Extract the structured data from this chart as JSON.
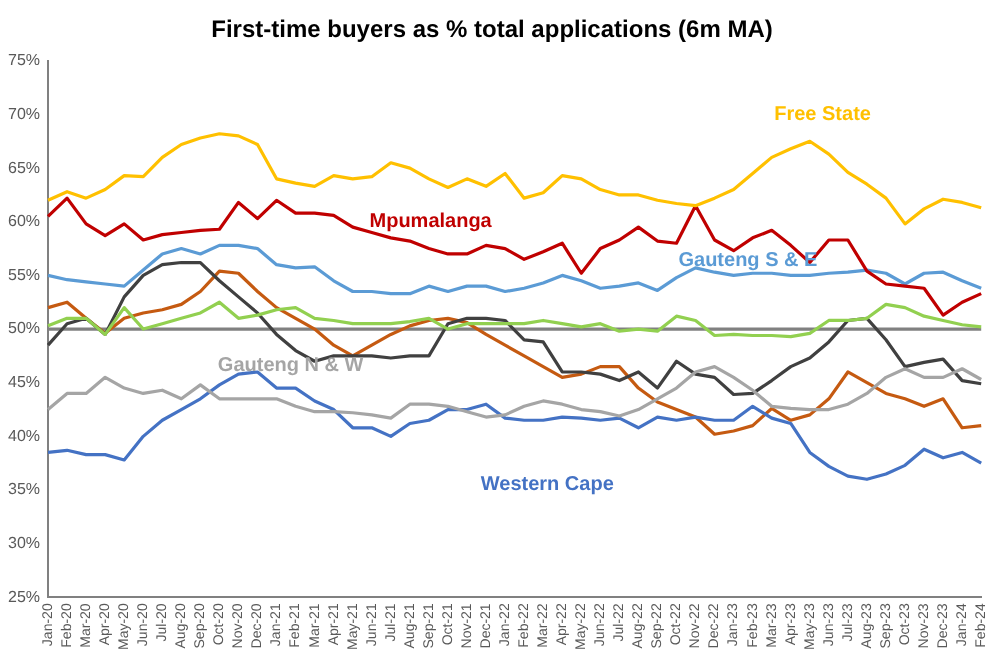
{
  "chart_data": {
    "type": "line",
    "title": "First-time buyers as % total applications (6m MA)",
    "categories": [
      "Jan-20",
      "Feb-20",
      "Mar-20",
      "Apr-20",
      "May-20",
      "Jun-20",
      "Jul-20",
      "Aug-20",
      "Sep-20",
      "Oct-20",
      "Nov-20",
      "Dec-20",
      "Jan-21",
      "Feb-21",
      "Mar-21",
      "Apr-21",
      "May-21",
      "Jun-21",
      "Jul-21",
      "Aug-21",
      "Sep-21",
      "Oct-21",
      "Nov-21",
      "Dec-21",
      "Jan-22",
      "Feb-22",
      "Mar-22",
      "Apr-22",
      "May-22",
      "Jun-22",
      "Jul-22",
      "Aug-22",
      "Sep-22",
      "Oct-22",
      "Nov-22",
      "Dec-22",
      "Jan-23",
      "Feb-23",
      "Mar-23",
      "Apr-23",
      "May-23",
      "Jun-23",
      "Jul-23",
      "Aug-23",
      "Sep-23",
      "Oct-23",
      "Nov-23",
      "Dec-23",
      "Jan-24",
      "Feb-24"
    ],
    "series": [
      {
        "name": "Free State",
        "color": "#ffc000",
        "values": [
          62,
          62.8,
          62.2,
          63,
          64.3,
          64.2,
          66,
          67.2,
          67.8,
          68.2,
          68,
          67.2,
          64,
          63.6,
          63.3,
          64.3,
          64,
          64.2,
          65.5,
          65,
          64,
          63.2,
          64,
          63.3,
          64.5,
          62.2,
          62.7,
          64.3,
          64,
          63,
          62.5,
          62.5,
          62,
          61.7,
          61.5,
          62.2,
          63,
          64.5,
          66,
          66.8,
          67.5,
          66.3,
          64.6,
          63.5,
          62.2,
          59.8,
          61.2,
          62.1,
          61.8,
          61.3
        ]
      },
      {
        "name": "Mpumalanga",
        "color": "#c00000",
        "values": [
          60.5,
          62.2,
          59.8,
          58.7,
          59.8,
          58.3,
          58.8,
          59,
          59.2,
          59.3,
          61.8,
          60.3,
          62,
          60.8,
          60.8,
          60.6,
          59.5,
          59,
          58.5,
          58.2,
          57.5,
          57,
          57,
          57.8,
          57.5,
          56.5,
          57.2,
          58,
          55.2,
          57.5,
          58.3,
          59.5,
          58.2,
          58,
          61.5,
          58.3,
          57.3,
          58.5,
          59.2,
          57.8,
          56.2,
          58.3,
          58.3,
          55.4,
          54.2,
          54,
          53.8,
          51.3,
          52.5,
          53.3
        ]
      },
      {
        "name": "Gauteng S & E",
        "color": "#5b9bd5",
        "values": [
          55,
          54.6,
          54.4,
          54.2,
          54,
          55.5,
          57,
          57.5,
          57,
          57.8,
          57.8,
          57.5,
          56,
          55.7,
          55.8,
          54.5,
          53.5,
          53.5,
          53.3,
          53.3,
          54,
          53.5,
          54,
          54,
          53.5,
          53.8,
          54.3,
          55,
          54.5,
          53.8,
          54,
          54.3,
          53.6,
          54.8,
          55.7,
          55.3,
          55,
          55.2,
          55.2,
          55,
          55,
          55.2,
          55.3,
          55.5,
          55.2,
          54.2,
          55.2,
          55.3,
          54.5,
          53.8
        ]
      },
      {
        "name": "Gauteng N & W",
        "color": "#a5a5a5",
        "values": [
          42.5,
          44,
          44,
          45.5,
          44.5,
          44,
          44.3,
          43.5,
          44.8,
          43.5,
          43.5,
          43.5,
          43.5,
          42.8,
          42.3,
          42.3,
          42.2,
          42,
          41.7,
          43,
          43,
          42.8,
          42.3,
          41.8,
          42,
          42.8,
          43.3,
          43,
          42.5,
          42.3,
          41.9,
          42.5,
          43.5,
          44.5,
          46,
          46.5,
          45.5,
          44.3,
          42.8,
          42.6,
          42.5,
          42.5,
          43,
          44,
          45.5,
          46.3,
          45.5,
          45.5,
          46.3,
          45.3
        ]
      },
      {
        "name": "Western Cape",
        "color": "#4472c4",
        "values": [
          38.5,
          38.7,
          38.3,
          38.3,
          37.8,
          40,
          41.5,
          42.5,
          43.5,
          44.8,
          45.8,
          46,
          44.5,
          44.5,
          43.3,
          42.5,
          40.8,
          40.8,
          40,
          41.2,
          41.5,
          42.5,
          42.5,
          43,
          41.7,
          41.5,
          41.5,
          41.8,
          41.7,
          41.5,
          41.7,
          40.8,
          41.8,
          41.5,
          41.8,
          41.5,
          41.5,
          42.8,
          41.7,
          41.2,
          38.5,
          37.2,
          36.3,
          36,
          36.5,
          37.3,
          38.8,
          38,
          38.5,
          37.5
        ]
      },
      {
        "color": "#92d050",
        "values": [
          50.3,
          51,
          51,
          49.5,
          52,
          50,
          50.5,
          51,
          51.5,
          52.5,
          51,
          51.3,
          51.8,
          52,
          51,
          50.8,
          50.5,
          50.5,
          50.5,
          50.7,
          51,
          50,
          50.5,
          50.5,
          50.5,
          50.5,
          50.8,
          50.5,
          50.2,
          50.5,
          49.8,
          50,
          49.8,
          51.2,
          50.8,
          49.4,
          49.5,
          49.4,
          49.4,
          49.3,
          49.6,
          50.8,
          50.8,
          51,
          52.3,
          52,
          51.2,
          50.8,
          50.4,
          50.2
        ]
      },
      {
        "color": "#404040",
        "values": [
          48.5,
          50.5,
          51,
          49.5,
          53,
          55,
          56,
          56.2,
          56.2,
          54.5,
          53,
          51.5,
          49.5,
          48,
          47,
          47.5,
          47.5,
          47.5,
          47.3,
          47.5,
          47.5,
          50.5,
          51,
          51,
          50.8,
          49,
          48.8,
          46,
          46,
          45.8,
          45.2,
          46,
          44.5,
          47,
          45.8,
          45.5,
          43.9,
          44,
          45.2,
          46.5,
          47.3,
          48.8,
          50.8,
          51,
          49,
          46.5,
          46.9,
          47.2,
          45.2,
          44.9
        ]
      },
      {
        "color": "#c55a11",
        "values": [
          52,
          52.5,
          51,
          49.6,
          51,
          51.5,
          51.8,
          52.3,
          53.5,
          55.4,
          55.2,
          53.5,
          52,
          51,
          50,
          48.5,
          47.5,
          48.5,
          49.5,
          50.3,
          50.8,
          51,
          50.6,
          49.5,
          48.5,
          47.5,
          46.5,
          45.5,
          45.8,
          46.5,
          46.5,
          44.5,
          43.2,
          42.5,
          41.8,
          40.2,
          40.5,
          41,
          42.6,
          41.5,
          42,
          43.5,
          46,
          45,
          44,
          43.5,
          42.8,
          43.5,
          40.8,
          41
        ]
      }
    ],
    "ylim": [
      25,
      75
    ],
    "yticks": [
      {
        "value": 25,
        "label": "25%"
      },
      {
        "value": 30,
        "label": "30%"
      },
      {
        "value": 35,
        "label": "35%"
      },
      {
        "value": 40,
        "label": "40%"
      },
      {
        "value": 45,
        "label": "45%"
      },
      {
        "value": 50,
        "label": "50%"
      },
      {
        "value": 55,
        "label": "55%"
      },
      {
        "value": 60,
        "label": "60%"
      },
      {
        "value": 65,
        "label": "65%"
      },
      {
        "value": 70,
        "label": "70%"
      },
      {
        "value": 75,
        "label": "75%"
      }
    ],
    "ref_lines": [
      {
        "axis": "y",
        "value": 50,
        "color": "#808080"
      }
    ],
    "grid": false,
    "legend": false,
    "marker": "none",
    "line_style": "solid"
  }
}
